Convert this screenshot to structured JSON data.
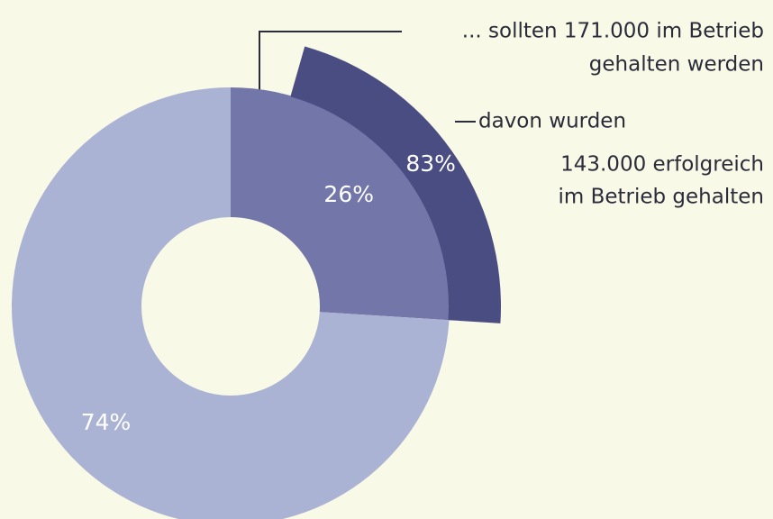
{
  "chart_data": {
    "type": "donut",
    "values": [
      26,
      74
    ],
    "value_labels": [
      "26%",
      "74%"
    ],
    "colors": [
      "#7276a8",
      "#abb3d5"
    ],
    "sub": {
      "values": [
        83
      ],
      "value_labels": [
        "83%"
      ],
      "color": "#4a4d82"
    },
    "annotations": [
      {
        "lines": [
          "... sollten 171.000 im Betrieb",
          "gehalten werden"
        ]
      },
      {
        "lines": [
          "davon wurden",
          "143.000 erfolgreich",
          "im Betrieb gehalten"
        ]
      }
    ]
  }
}
